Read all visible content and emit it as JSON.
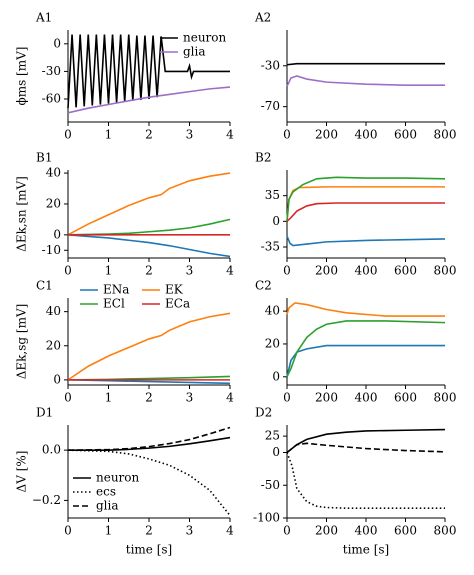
{
  "chart_data": [
    {
      "type": "line",
      "title": "A1",
      "ylabel": "ϕms [mV]",
      "xlim": [
        0,
        4
      ],
      "ylim": [
        -85,
        15
      ],
      "xticks": [
        0,
        1,
        2,
        3,
        4
      ],
      "yticks": [
        0,
        -30,
        -60
      ],
      "legend": "upper right",
      "series": [
        {
          "name": "neuron",
          "color": "#000000",
          "x": [
            0,
            0.1,
            0.2,
            0.3,
            0.4,
            0.5,
            0.6,
            0.7,
            0.8,
            0.9,
            1.0,
            1.1,
            1.2,
            1.3,
            1.4,
            1.5,
            1.6,
            1.7,
            1.8,
            1.9,
            2.0,
            2.1,
            2.2,
            2.3,
            2.4,
            2.6,
            2.8,
            2.95,
            3.0,
            3.05,
            3.1,
            3.6,
            4.0
          ],
          "values": [
            -70,
            10,
            -69,
            10,
            -68,
            10,
            -67,
            10,
            -66,
            10,
            -65,
            10,
            -64,
            10,
            -63,
            10,
            -62,
            9,
            -61,
            9,
            -60,
            9,
            -58,
            8,
            -30,
            -30,
            -30,
            -30,
            -24,
            -36,
            -30,
            -30,
            -30
          ]
        },
        {
          "name": "glia",
          "color": "#9b6fc9",
          "x": [
            0,
            0.5,
            1,
            1.5,
            2,
            2.5,
            3,
            3.5,
            4
          ],
          "values": [
            -75,
            -70,
            -66,
            -62,
            -58,
            -55,
            -52,
            -49,
            -47
          ]
        }
      ]
    },
    {
      "type": "line",
      "title": "A2",
      "xlim": [
        0,
        800
      ],
      "ylim": [
        -85,
        5
      ],
      "xticks": [
        0,
        200,
        400,
        600,
        800
      ],
      "yticks": [
        -30,
        -70
      ],
      "series": [
        {
          "color": "#000000",
          "x": [
            0,
            50,
            200,
            400,
            600,
            800
          ],
          "values": [
            -29,
            -28,
            -28,
            -28,
            -28,
            -28
          ]
        },
        {
          "color": "#9b6fc9",
          "x": [
            0,
            20,
            50,
            100,
            200,
            400,
            600,
            800
          ],
          "values": [
            -50,
            -42,
            -40,
            -43,
            -46,
            -48,
            -49,
            -49
          ]
        }
      ]
    },
    {
      "type": "line",
      "title": "B1",
      "ylabel": "ΔEk,sn [mV]",
      "xlim": [
        0,
        4
      ],
      "ylim": [
        -15,
        42
      ],
      "xticks": [
        0,
        1,
        2,
        3,
        4
      ],
      "yticks": [
        -10,
        0,
        20,
        40
      ],
      "series": [
        {
          "color": "#1f77b4",
          "x": [
            0,
            0.5,
            1,
            1.5,
            2,
            2.5,
            3,
            3.5,
            4
          ],
          "values": [
            0,
            -1,
            -2,
            -3.5,
            -5,
            -7,
            -9.5,
            -12,
            -14
          ]
        },
        {
          "color": "#ff7f0e",
          "x": [
            0,
            0.5,
            1,
            1.5,
            2,
            2.3,
            2.5,
            3,
            3.5,
            4
          ],
          "values": [
            0,
            7,
            13,
            19,
            24,
            26,
            30,
            35,
            38,
            40
          ]
        },
        {
          "color": "#2ca02c",
          "x": [
            0,
            1,
            1.5,
            2,
            2.5,
            3,
            3.5,
            4
          ],
          "values": [
            0,
            0.5,
            1,
            2,
            3,
            4.5,
            7,
            10
          ]
        },
        {
          "color": "#d62728",
          "x": [
            0,
            4
          ],
          "values": [
            0,
            0
          ]
        }
      ]
    },
    {
      "type": "line",
      "title": "B2",
      "xlim": [
        0,
        800
      ],
      "ylim": [
        -50,
        70
      ],
      "xticks": [
        0,
        200,
        400,
        600,
        800
      ],
      "yticks": [
        -35,
        0,
        35
      ],
      "series": [
        {
          "color": "#1f77b4",
          "x": [
            0,
            15,
            30,
            100,
            200,
            400,
            600,
            800
          ],
          "values": [
            -20,
            -30,
            -33,
            -31,
            -28,
            -26,
            -25,
            -24
          ]
        },
        {
          "color": "#ff7f0e",
          "x": [
            0,
            10,
            30,
            60,
            200,
            400,
            800
          ],
          "values": [
            0,
            30,
            42,
            46,
            47,
            47,
            47
          ]
        },
        {
          "color": "#2ca02c",
          "x": [
            0,
            10,
            30,
            80,
            150,
            250,
            400,
            600,
            800
          ],
          "values": [
            0,
            30,
            40,
            50,
            58,
            60,
            59,
            59,
            58
          ]
        },
        {
          "color": "#d62728",
          "x": [
            0,
            20,
            50,
            100,
            150,
            250,
            400,
            800
          ],
          "values": [
            0,
            5,
            14,
            21,
            24,
            25,
            25,
            25
          ]
        }
      ]
    },
    {
      "type": "line",
      "title": "C1",
      "ylabel": "ΔEk,sg [mV]",
      "xlim": [
        0,
        4
      ],
      "ylim": [
        -3,
        48
      ],
      "xticks": [
        0,
        1,
        2,
        3,
        4
      ],
      "yticks": [
        0,
        20,
        40
      ],
      "legend": "upper left",
      "legend_columns": 2,
      "series": [
        {
          "name": "ENa",
          "color": "#1f77b4",
          "x": [
            0,
            1,
            2,
            3,
            4
          ],
          "values": [
            0,
            -0.5,
            -1,
            -1.5,
            -2
          ]
        },
        {
          "name": "EK",
          "color": "#ff7f0e",
          "x": [
            0,
            0.5,
            1,
            1.5,
            2,
            2.3,
            2.5,
            3,
            3.5,
            4
          ],
          "values": [
            0,
            8,
            14,
            19,
            24,
            26,
            29,
            34,
            37,
            39
          ]
        },
        {
          "name": "ECl",
          "color": "#2ca02c",
          "x": [
            0,
            1,
            2,
            3,
            4
          ],
          "values": [
            0,
            0.3,
            0.8,
            1.3,
            2
          ]
        },
        {
          "name": "ECa",
          "color": "#d62728",
          "x": [
            0,
            4
          ],
          "values": [
            0,
            0
          ]
        }
      ]
    },
    {
      "type": "line",
      "title": "C2",
      "xlim": [
        0,
        800
      ],
      "ylim": [
        -5,
        48
      ],
      "xticks": [
        0,
        200,
        400,
        600,
        800
      ],
      "yticks": [
        0,
        20,
        40
      ],
      "series": [
        {
          "color": "#1f77b4",
          "x": [
            0,
            20,
            50,
            100,
            200,
            400,
            800
          ],
          "values": [
            0,
            10,
            15,
            17,
            19,
            19,
            19
          ]
        },
        {
          "color": "#ff7f0e",
          "x": [
            0,
            10,
            40,
            100,
            200,
            300,
            500,
            800
          ],
          "values": [
            38,
            42,
            45,
            44,
            41,
            39,
            37,
            37
          ]
        },
        {
          "color": "#2ca02c",
          "x": [
            0,
            20,
            50,
            100,
            150,
            200,
            300,
            500,
            800
          ],
          "values": [
            0,
            5,
            15,
            24,
            29,
            32,
            34,
            34,
            33
          ]
        }
      ]
    },
    {
      "type": "line",
      "title": "D1",
      "ylabel": "ΔV [%]",
      "xlabel": "time [s]",
      "xlim": [
        0,
        4
      ],
      "ylim": [
        -0.27,
        0.1
      ],
      "xticks": [
        0,
        1,
        2,
        3,
        4
      ],
      "yticks": [
        {
          "value": 0,
          "label": "0.0"
        },
        {
          "value": -0.2,
          "label": "−0.2"
        }
      ],
      "legend": "lower left",
      "series": [
        {
          "name": "neuron",
          "color": "#000000",
          "dash": "solid",
          "x": [
            0,
            1,
            1.5,
            2,
            2.5,
            3,
            3.5,
            4
          ],
          "values": [
            0,
            0,
            0.003,
            0.008,
            0.015,
            0.025,
            0.037,
            0.05
          ]
        },
        {
          "name": "ecs",
          "color": "#000000",
          "dash": "dotted",
          "x": [
            0,
            1,
            1.5,
            2,
            2.5,
            3,
            3.5,
            4
          ],
          "values": [
            0,
            -0.005,
            -0.015,
            -0.035,
            -0.06,
            -0.1,
            -0.16,
            -0.26
          ]
        },
        {
          "name": "glia",
          "color": "#000000",
          "dash": "dashed",
          "x": [
            0,
            1,
            1.5,
            2,
            2.5,
            3,
            3.5,
            4
          ],
          "values": [
            0,
            0.002,
            0.006,
            0.014,
            0.026,
            0.042,
            0.065,
            0.09
          ]
        }
      ]
    },
    {
      "type": "line",
      "title": "D2",
      "xlabel": "time [s]",
      "xlim": [
        0,
        800
      ],
      "ylim": [
        -100,
        42
      ],
      "xticks": [
        0,
        200,
        400,
        600,
        800
      ],
      "yticks": [
        25,
        0,
        -50,
        -100
      ],
      "series": [
        {
          "color": "#000000",
          "dash": "solid",
          "x": [
            0,
            50,
            100,
            200,
            300,
            400,
            600,
            800
          ],
          "values": [
            0,
            12,
            20,
            28,
            31,
            33,
            34,
            35
          ]
        },
        {
          "color": "#000000",
          "dash": "dotted",
          "x": [
            0,
            25,
            50,
            100,
            150,
            200,
            300,
            500,
            800
          ],
          "values": [
            0,
            -20,
            -55,
            -75,
            -82,
            -84,
            -85,
            -85,
            -85
          ]
        },
        {
          "color": "#000000",
          "dash": "dashed",
          "x": [
            0,
            50,
            100,
            200,
            400,
            600,
            800
          ],
          "values": [
            0,
            12,
            14,
            11,
            6,
            3,
            1
          ]
        }
      ]
    }
  ]
}
